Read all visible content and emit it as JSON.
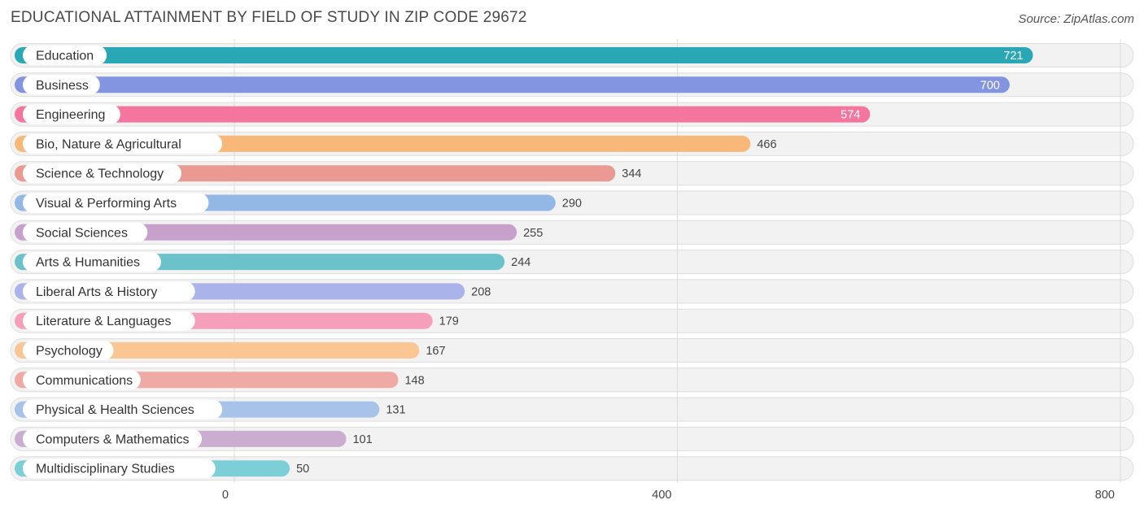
{
  "header": {
    "title": "EDUCATIONAL ATTAINMENT BY FIELD OF STUDY IN ZIP CODE 29672",
    "source": "Source: ZipAtlas.com"
  },
  "chart_data": {
    "type": "bar",
    "orientation": "horizontal",
    "title": "EDUCATIONAL ATTAINMENT BY FIELD OF STUDY IN ZIP CODE 29672",
    "xlabel": "",
    "ylabel": "",
    "xlim": [
      0,
      800
    ],
    "ticks": [
      0,
      400,
      800
    ],
    "grid": true,
    "categories": [
      "Education",
      "Business",
      "Engineering",
      "Bio, Nature & Agricultural",
      "Science & Technology",
      "Visual & Performing Arts",
      "Social Sciences",
      "Arts & Humanities",
      "Liberal Arts & History",
      "Literature & Languages",
      "Psychology",
      "Communications",
      "Physical & Health Sciences",
      "Computers & Mathematics",
      "Multidisciplinary Studies"
    ],
    "values": [
      721,
      700,
      574,
      466,
      344,
      290,
      255,
      244,
      208,
      179,
      167,
      148,
      131,
      101,
      50
    ],
    "colors": [
      "#2aa7b5",
      "#8394e0",
      "#f4769e",
      "#f8b879",
      "#ea9993",
      "#93b8e6",
      "#c7a1cc",
      "#6bc2cb",
      "#aab3ea",
      "#f69fbb",
      "#f9c694",
      "#f0aaa5",
      "#a7c3ea",
      "#cbadd2",
      "#7ccfd6"
    ]
  }
}
